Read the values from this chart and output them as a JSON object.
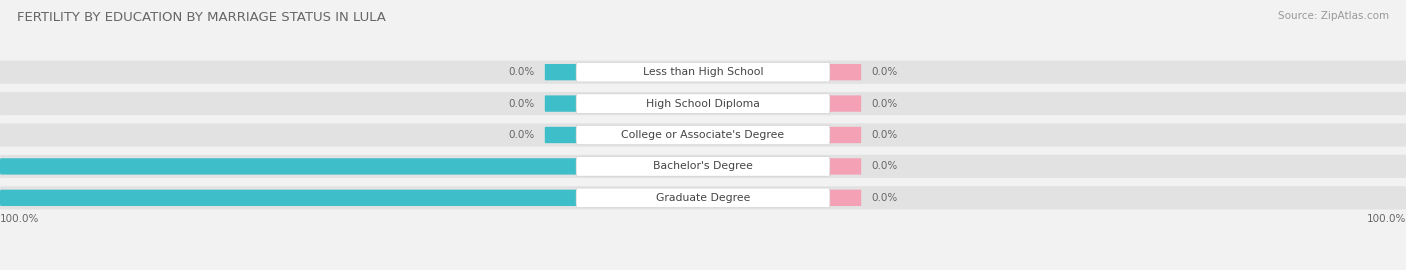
{
  "title": "FERTILITY BY EDUCATION BY MARRIAGE STATUS IN LULA",
  "source": "Source: ZipAtlas.com",
  "categories": [
    "Less than High School",
    "High School Diploma",
    "College or Associate's Degree",
    "Bachelor's Degree",
    "Graduate Degree"
  ],
  "married_values": [
    0.0,
    0.0,
    0.0,
    100.0,
    100.0
  ],
  "unmarried_values": [
    0.0,
    0.0,
    0.0,
    0.0,
    0.0
  ],
  "married_color": "#3dbec8",
  "unmarried_color": "#f4a0b5",
  "bg_color": "#f2f2f2",
  "bar_bg_color": "#e2e2e2",
  "title_color": "#666666",
  "source_color": "#999999",
  "label_color": "#444444",
  "value_color": "#666666",
  "title_fontsize": 9.5,
  "source_fontsize": 7.5,
  "cat_label_fontsize": 7.8,
  "bar_label_fontsize": 7.5,
  "legend_fontsize": 8.5,
  "bottom_left_label": "100.0%",
  "bottom_right_label": "100.0%"
}
